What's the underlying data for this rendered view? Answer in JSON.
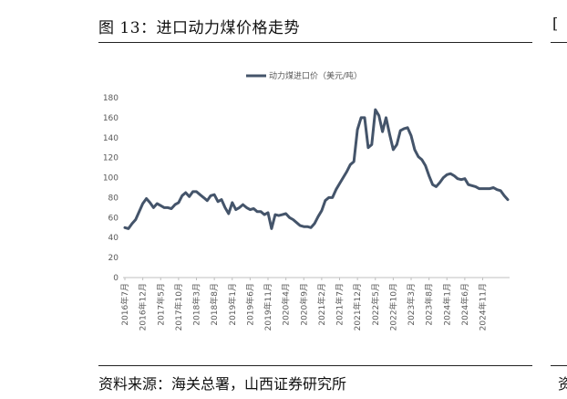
{
  "figure": {
    "title": "图 13：进口动力煤价格走势",
    "source": "资料来源：海关总署，山西证券研究所"
  },
  "colors": {
    "series": "#44546A",
    "axis": "#BFBFBF",
    "text": "#595959"
  },
  "chart_data": {
    "type": "line",
    "title": "",
    "xlabel": "",
    "ylabel": "",
    "ylim": [
      0,
      180
    ],
    "yticks": [
      0,
      20,
      40,
      60,
      80,
      100,
      120,
      140,
      160,
      180
    ],
    "legend": "top-center",
    "grid": false,
    "x_tick_labels": [
      "2016年7月",
      "2016年12月",
      "2017年5月",
      "2017年10月",
      "2018年3月",
      "2018年8月",
      "2019年1月",
      "2019年6月",
      "2019年11月",
      "2020年4月",
      "2020年9月",
      "2021年2月",
      "2021年7月",
      "2021年12月",
      "2022年5月",
      "2022年10月",
      "2023年3月",
      "2023年8月",
      "2024年1月",
      "2024年6月",
      "2024年11月"
    ],
    "series": [
      {
        "name": "动力煤进口价（美元/吨）",
        "values": [
          50,
          49,
          54,
          58,
          66,
          74,
          79,
          75,
          70,
          74,
          72,
          70,
          70,
          69,
          73,
          75,
          82,
          85,
          81,
          86,
          86,
          83,
          80,
          77,
          82,
          83,
          76,
          78,
          70,
          64,
          75,
          68,
          70,
          73,
          70,
          68,
          69,
          66,
          66,
          63,
          65,
          49,
          63,
          62,
          63,
          64,
          60,
          58,
          55,
          52,
          51,
          51,
          50,
          54,
          61,
          67,
          77,
          80,
          80,
          88,
          94,
          100,
          106,
          113,
          116,
          148,
          160,
          160,
          130,
          133,
          168,
          162,
          146,
          160,
          143,
          128,
          133,
          147,
          149,
          150,
          142,
          128,
          121,
          118,
          112,
          102,
          93,
          91,
          95,
          100,
          103,
          104,
          102,
          99,
          98,
          99,
          93,
          92,
          91,
          89,
          89,
          89,
          89,
          90,
          88,
          87,
          82,
          78
        ]
      }
    ]
  }
}
